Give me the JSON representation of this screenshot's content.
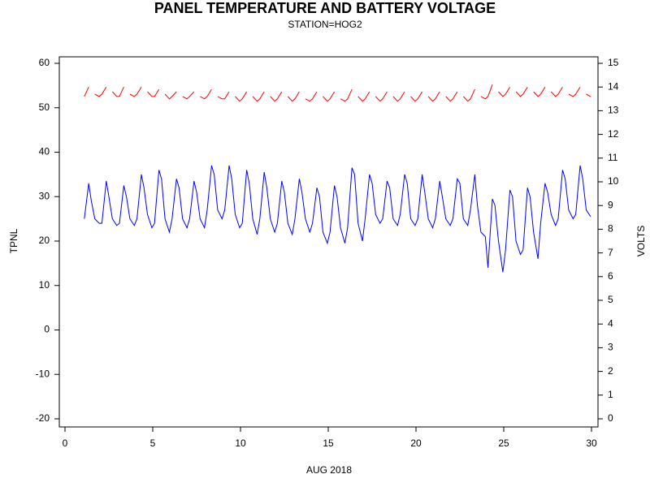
{
  "chart_data": {
    "type": "line",
    "title": "PANEL TEMPERATURE AND BATTERY VOLTAGE",
    "subtitle": "STATION=HOG2",
    "x_label": "AUG 2018",
    "y_label": "TPNL",
    "y2_label": "VOLTS",
    "xlim": [
      0,
      30
    ],
    "xticks": [
      0,
      5,
      10,
      15,
      20,
      25,
      30
    ],
    "ylim": [
      -20,
      60
    ],
    "yticks": [
      -20,
      -10,
      0,
      10,
      20,
      30,
      40,
      50,
      60
    ],
    "y2lim": [
      0,
      15
    ],
    "y2ticks": [
      0,
      1,
      2,
      3,
      4,
      5,
      6,
      7,
      8,
      9,
      10,
      11,
      12,
      13,
      14,
      15
    ],
    "x": [
      1.1,
      1.35,
      1.5,
      1.7,
      1.95,
      2.1,
      2.35,
      2.5,
      2.7,
      2.95,
      3.1,
      3.35,
      3.5,
      3.7,
      3.95,
      4.1,
      4.35,
      4.5,
      4.7,
      4.95,
      5.1,
      5.35,
      5.5,
      5.7,
      5.95,
      6.1,
      6.35,
      6.5,
      6.7,
      6.95,
      7.1,
      7.35,
      7.5,
      7.7,
      7.95,
      8.1,
      8.35,
      8.5,
      8.7,
      8.95,
      9.1,
      9.35,
      9.5,
      9.7,
      9.95,
      10.1,
      10.35,
      10.5,
      10.7,
      10.95,
      11.1,
      11.35,
      11.5,
      11.7,
      11.95,
      12.1,
      12.35,
      12.5,
      12.7,
      12.95,
      13.1,
      13.35,
      13.5,
      13.7,
      13.95,
      14.1,
      14.35,
      14.5,
      14.7,
      14.95,
      15.1,
      15.35,
      15.5,
      15.7,
      15.95,
      16.1,
      16.35,
      16.5,
      16.7,
      16.95,
      17.1,
      17.35,
      17.5,
      17.7,
      17.95,
      18.1,
      18.35,
      18.5,
      18.7,
      18.95,
      19.1,
      19.35,
      19.5,
      19.7,
      19.95,
      20.1,
      20.35,
      20.5,
      20.7,
      20.95,
      21.1,
      21.35,
      21.5,
      21.7,
      21.95,
      22.1,
      22.35,
      22.5,
      22.7,
      22.95,
      23.1,
      23.35,
      23.5,
      23.7,
      23.95,
      24.1,
      24.35,
      24.5,
      24.7,
      24.95,
      25.1,
      25.35,
      25.5,
      25.7,
      25.95,
      26.1,
      26.35,
      26.5,
      26.7,
      26.95,
      27.1,
      27.35,
      27.5,
      27.7,
      27.95,
      28.1,
      28.35,
      28.5,
      28.7,
      28.95,
      29.1,
      29.35,
      29.5,
      29.7,
      29.95
    ],
    "series": [
      {
        "color": "#0000ff",
        "axis": "y",
        "values": [
          25,
          33,
          29,
          25,
          24,
          24,
          33.5,
          30,
          25,
          23.5,
          24,
          32.5,
          30,
          25,
          23.5,
          25,
          35,
          32,
          26,
          23,
          24,
          36,
          34,
          25,
          22,
          25,
          34,
          32,
          25,
          23,
          25,
          33.5,
          31,
          25,
          23,
          27,
          37,
          35,
          27,
          25,
          27,
          37,
          34,
          26,
          23,
          24,
          36,
          33,
          25,
          21.5,
          25,
          35.5,
          32,
          25,
          22,
          24,
          33.5,
          31,
          24,
          21.5,
          25,
          34,
          31,
          25,
          22,
          24,
          32,
          30,
          22,
          19.5,
          22,
          32.5,
          30,
          23,
          19.5,
          23,
          36.5,
          35,
          24,
          20,
          25,
          35,
          33,
          26,
          24,
          25,
          33.5,
          32,
          25,
          23.5,
          26,
          35,
          33,
          25,
          23.5,
          25,
          35,
          31,
          25,
          23,
          25,
          33.5,
          30,
          25,
          23.5,
          25,
          34,
          33,
          25,
          23.5,
          27,
          35,
          28,
          22,
          21,
          14,
          29.5,
          28,
          20,
          13,
          18,
          31.5,
          30,
          20,
          17,
          18,
          32,
          30,
          22,
          16,
          24,
          33,
          31,
          26,
          23.5,
          25,
          36,
          34,
          27,
          25,
          26,
          37,
          34,
          27,
          25.5
        ]
      },
      {
        "color": "#ff0000",
        "axis": "y2",
        "values": [
          13.6,
          14.0,
          null,
          13.7,
          13.6,
          13.7,
          14.0,
          null,
          13.8,
          13.6,
          13.6,
          14.0,
          null,
          13.7,
          13.6,
          13.7,
          14.0,
          null,
          13.8,
          13.6,
          13.6,
          13.9,
          null,
          13.7,
          13.5,
          13.6,
          13.8,
          null,
          13.6,
          13.5,
          13.6,
          13.8,
          null,
          13.6,
          13.5,
          13.6,
          13.9,
          null,
          13.6,
          13.5,
          13.5,
          13.8,
          null,
          13.6,
          13.4,
          13.5,
          13.8,
          null,
          13.6,
          13.4,
          13.5,
          13.8,
          null,
          13.6,
          13.4,
          13.5,
          13.8,
          null,
          13.6,
          13.4,
          13.5,
          13.8,
          null,
          13.5,
          13.4,
          13.5,
          13.8,
          null,
          13.6,
          13.4,
          13.5,
          13.8,
          null,
          13.5,
          13.4,
          13.5,
          13.9,
          null,
          13.6,
          13.4,
          13.5,
          13.8,
          null,
          13.6,
          13.4,
          13.5,
          13.8,
          null,
          13.6,
          13.4,
          13.5,
          13.8,
          null,
          13.6,
          13.4,
          13.5,
          13.8,
          null,
          13.6,
          13.4,
          13.5,
          13.8,
          null,
          13.6,
          13.4,
          13.5,
          13.8,
          null,
          13.6,
          13.4,
          13.5,
          13.9,
          null,
          13.6,
          13.5,
          13.6,
          14.1,
          null,
          13.8,
          13.6,
          13.7,
          14.0,
          null,
          13.8,
          13.6,
          13.7,
          14.0,
          null,
          13.8,
          13.6,
          13.7,
          14.0,
          null,
          13.8,
          13.6,
          13.7,
          14.0,
          null,
          13.7,
          13.6,
          13.7,
          14.0,
          null,
          13.7,
          13.6
        ]
      }
    ]
  }
}
